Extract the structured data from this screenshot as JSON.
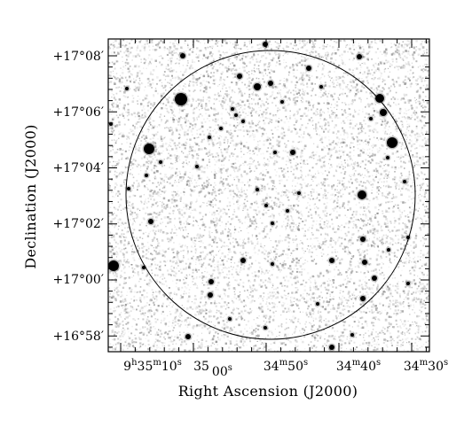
{
  "figure": {
    "x_axis_title": "Right Ascension (J2000)",
    "y_axis_title": "Declination (J2000)",
    "colors": {
      "sky_background": "#ffffff",
      "noise": "#9a9a9a",
      "stars": "#000000",
      "circle": "#000000"
    }
  },
  "y_ticks": [
    {
      "deg": "+17°",
      "arcmin": "08′"
    },
    {
      "deg": "+17°",
      "arcmin": "06′"
    },
    {
      "deg": "+17°",
      "arcmin": "04′"
    },
    {
      "deg": "+17°",
      "arcmin": "02′"
    },
    {
      "deg": "+17°",
      "arcmin": "00′"
    },
    {
      "deg": "+16°",
      "arcmin": "58′"
    }
  ],
  "x_ticks": [
    {
      "h": "9",
      "h_unit": "h",
      "m": "35",
      "m_unit": "m",
      "s": "10",
      "s_unit": "s"
    },
    {
      "h": "",
      "h_unit": "",
      "m": "35",
      "m_unit": "",
      "s": "00",
      "s_unit": "s"
    },
    {
      "h": "",
      "h_unit": "",
      "m": "34",
      "m_unit": "m",
      "s": "50",
      "s_unit": "s"
    },
    {
      "h": "",
      "h_unit": "",
      "m": "34",
      "m_unit": "m",
      "s": "40",
      "s_unit": "s"
    },
    {
      "h": "",
      "h_unit": "",
      "m": "34",
      "m_unit": "m",
      "s": "30",
      "s_unit": "s"
    }
  ]
}
